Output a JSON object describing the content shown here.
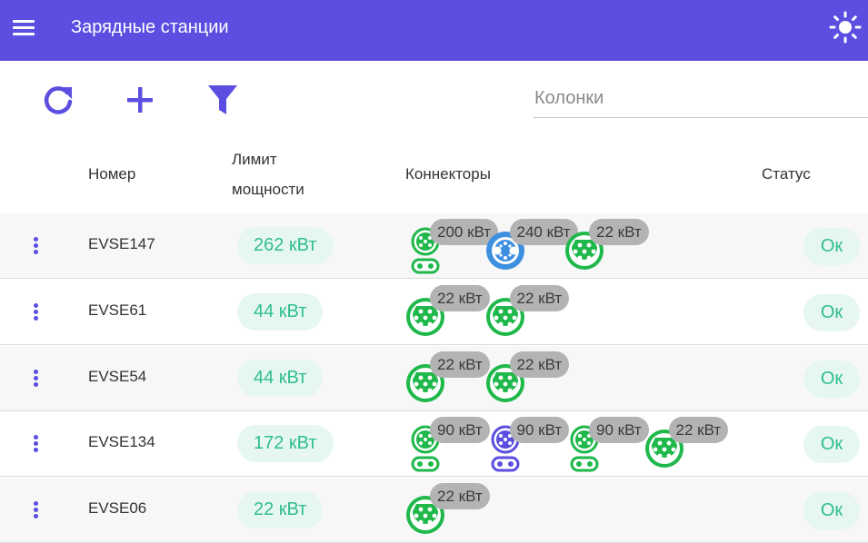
{
  "app": {
    "title": "Зарядные станции"
  },
  "icons": {
    "menu": "menu-icon",
    "theme": "sun-icon",
    "refresh": "refresh-icon",
    "add": "plus-icon",
    "filter": "filter-icon",
    "row_menu": "more-vertical-icon"
  },
  "colors": {
    "accent": "#5b4ee0",
    "status_ok": "#2fbd8f",
    "connector_green": "#1fb84a",
    "connector_blue": "#3d8fe0",
    "connector_purple": "#5b4ee0",
    "badge": "#b3b3b3"
  },
  "search": {
    "placeholder": "Колонки",
    "value": ""
  },
  "table": {
    "headers": {
      "number": "Номер",
      "power_limit_1": "Лимит",
      "power_limit_2": "мощности",
      "connectors": "Коннекторы",
      "status": "Статус"
    },
    "rows": [
      {
        "id": "EVSE147",
        "power": "262 кВт",
        "status": "Ок",
        "connectors": [
          {
            "type": "ccs",
            "color": "green",
            "power": "200 кВт"
          },
          {
            "type": "chademo",
            "color": "blue",
            "power": "240 кВт"
          },
          {
            "type": "type2",
            "color": "green",
            "power": "22 кВт"
          }
        ]
      },
      {
        "id": "EVSE61",
        "power": "44 кВт",
        "status": "Ок",
        "connectors": [
          {
            "type": "type2",
            "color": "green",
            "power": "22 кВт"
          },
          {
            "type": "type2",
            "color": "green",
            "power": "22 кВт"
          }
        ]
      },
      {
        "id": "EVSE54",
        "power": "44 кВт",
        "status": "Ок",
        "connectors": [
          {
            "type": "type2",
            "color": "green",
            "power": "22 кВт"
          },
          {
            "type": "type2",
            "color": "green",
            "power": "22 кВт"
          }
        ]
      },
      {
        "id": "EVSE134",
        "power": "172 кВт",
        "status": "Ок",
        "connectors": [
          {
            "type": "ccs",
            "color": "green",
            "power": "90 кВт"
          },
          {
            "type": "ccs",
            "color": "purple",
            "power": "90 кВт"
          },
          {
            "type": "ccs",
            "color": "green",
            "power": "90 кВт"
          },
          {
            "type": "type2",
            "color": "green",
            "power": "22 кВт"
          }
        ]
      },
      {
        "id": "EVSE06",
        "power": "22 кВт",
        "status": "Ок",
        "connectors": [
          {
            "type": "type2",
            "color": "green",
            "power": "22 кВт"
          }
        ]
      }
    ]
  }
}
